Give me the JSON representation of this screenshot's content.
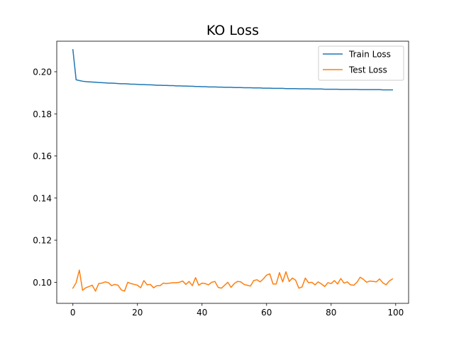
{
  "chart_data": {
    "type": "line",
    "title": "KO Loss",
    "xlabel": "",
    "ylabel": "",
    "xlim": [
      -5,
      104
    ],
    "ylim": [
      0.09,
      0.2145
    ],
    "xticks": [
      0,
      20,
      40,
      60,
      80,
      100
    ],
    "yticks": [
      0.1,
      0.12,
      0.14,
      0.16,
      0.18,
      0.2
    ],
    "xtick_labels": [
      "0",
      "20",
      "40",
      "60",
      "80",
      "100"
    ],
    "ytick_labels": [
      "0.10",
      "0.12",
      "0.14",
      "0.16",
      "0.18",
      "0.20"
    ],
    "grid": false,
    "legend_position": "top-right",
    "x": [
      0,
      1,
      2,
      3,
      4,
      5,
      6,
      7,
      8,
      9,
      10,
      11,
      12,
      13,
      14,
      15,
      16,
      17,
      18,
      19,
      20,
      21,
      22,
      23,
      24,
      25,
      26,
      27,
      28,
      29,
      30,
      31,
      32,
      33,
      34,
      35,
      36,
      37,
      38,
      39,
      40,
      41,
      42,
      43,
      44,
      45,
      46,
      47,
      48,
      49,
      50,
      51,
      52,
      53,
      54,
      55,
      56,
      57,
      58,
      59,
      60,
      61,
      62,
      63,
      64,
      65,
      66,
      67,
      68,
      69,
      70,
      71,
      72,
      73,
      74,
      75,
      76,
      77,
      78,
      79,
      80,
      81,
      82,
      83,
      84,
      85,
      86,
      87,
      88,
      89,
      90,
      91,
      92,
      93,
      94,
      95,
      96,
      97,
      98,
      99
    ],
    "series": [
      {
        "name": "Train Loss",
        "color": "#1f77b4",
        "values": [
          0.2105,
          0.1962,
          0.1958,
          0.1955,
          0.1953,
          0.1952,
          0.1951,
          0.195,
          0.1949,
          0.1948,
          0.1947,
          0.1946,
          0.1946,
          0.1945,
          0.1944,
          0.1943,
          0.1943,
          0.1942,
          0.1941,
          0.1941,
          0.194,
          0.1939,
          0.1939,
          0.1938,
          0.1938,
          0.1937,
          0.1936,
          0.1936,
          0.1935,
          0.1935,
          0.1934,
          0.1934,
          0.1933,
          0.1933,
          0.1932,
          0.1932,
          0.1931,
          0.1931,
          0.193,
          0.193,
          0.1929,
          0.1929,
          0.1928,
          0.1928,
          0.1928,
          0.1927,
          0.1927,
          0.1926,
          0.1926,
          0.1926,
          0.1925,
          0.1925,
          0.1925,
          0.1924,
          0.1924,
          0.1924,
          0.1923,
          0.1923,
          0.1923,
          0.1922,
          0.1922,
          0.1922,
          0.1921,
          0.1921,
          0.1921,
          0.1921,
          0.192,
          0.192,
          0.192,
          0.192,
          0.1919,
          0.1919,
          0.1919,
          0.1919,
          0.1918,
          0.1918,
          0.1918,
          0.1918,
          0.1917,
          0.1917,
          0.1917,
          0.1917,
          0.1917,
          0.1916,
          0.1916,
          0.1916,
          0.1916,
          0.1916,
          0.1916,
          0.1915,
          0.1915,
          0.1915,
          0.1915,
          0.1915,
          0.1915,
          0.1915,
          0.1914,
          0.1914,
          0.1914,
          0.1914
        ]
      },
      {
        "name": "Test Loss",
        "color": "#ff7f0e",
        "values": [
          0.0972,
          0.0998,
          0.1058,
          0.0962,
          0.0974,
          0.098,
          0.0986,
          0.0958,
          0.0994,
          0.0996,
          0.1002,
          0.0998,
          0.0984,
          0.099,
          0.0986,
          0.0964,
          0.0958,
          0.1,
          0.0994,
          0.099,
          0.0986,
          0.0974,
          0.1008,
          0.0988,
          0.099,
          0.0974,
          0.0984,
          0.0984,
          0.0996,
          0.0994,
          0.0996,
          0.0998,
          0.0998,
          0.1,
          0.1006,
          0.099,
          0.1004,
          0.0984,
          0.1022,
          0.0986,
          0.0996,
          0.0994,
          0.0988,
          0.1,
          0.1004,
          0.0976,
          0.0972,
          0.0986,
          0.1,
          0.0976,
          0.0994,
          0.1004,
          0.1002,
          0.099,
          0.0986,
          0.0982,
          0.1008,
          0.1012,
          0.1002,
          0.1016,
          0.1034,
          0.104,
          0.0992,
          0.0992,
          0.1046,
          0.1002,
          0.105,
          0.1004,
          0.102,
          0.101,
          0.0972,
          0.0978,
          0.102,
          0.0998,
          0.1,
          0.0988,
          0.1002,
          0.0992,
          0.098,
          0.0998,
          0.0994,
          0.1008,
          0.0992,
          0.1018,
          0.0996,
          0.1002,
          0.0988,
          0.0986,
          0.1,
          0.1024,
          0.1014,
          0.1,
          0.1006,
          0.1004,
          0.1002,
          0.1016,
          0.0998,
          0.0988,
          0.1006,
          0.1016
        ]
      }
    ]
  }
}
